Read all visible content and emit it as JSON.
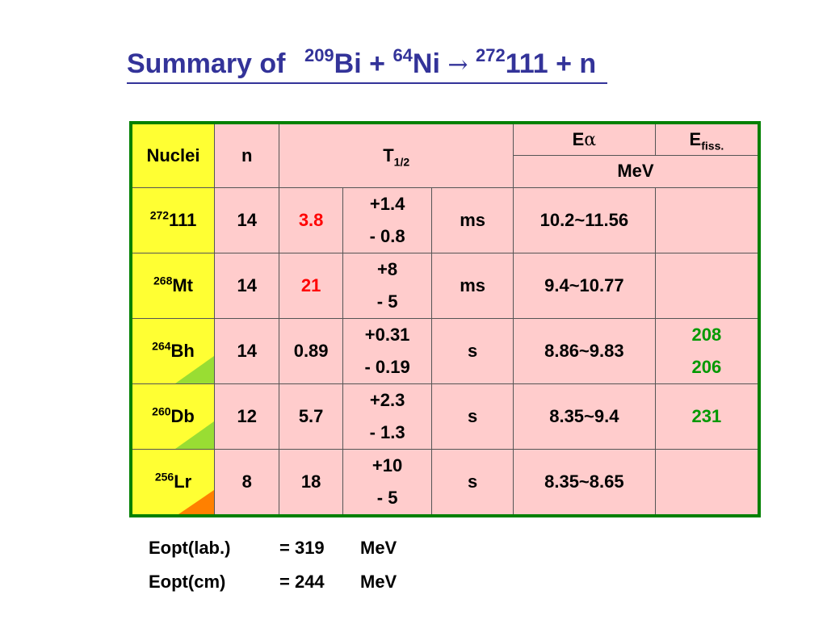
{
  "title": {
    "prefix": "Summary of",
    "bi_mass": "209",
    "bi": "Bi +",
    "ni_mass": "64",
    "ni": "Ni",
    "arrow": "→",
    "product_mass": "272",
    "product": "111 + n"
  },
  "table": {
    "headers": {
      "nuclei": "Nuclei",
      "n": "n",
      "t_half_main": "T",
      "t_half_sub": "1/2",
      "e_alpha_main": "E",
      "e_alpha_sub": "α",
      "e_fiss_main": "E",
      "e_fiss_sub": "fiss.",
      "unit": "MeV"
    },
    "rows": [
      {
        "mass": "272",
        "element": "111",
        "n": "14",
        "t": "3.8",
        "t_color": "#ff0000",
        "plus": "+1.4",
        "minus": "- 0.8",
        "unit": "ms",
        "ealpha": "10.2~11.56",
        "efiss1": "",
        "efiss2": "",
        "marker": ""
      },
      {
        "mass": "268",
        "element": "Mt",
        "n": "14",
        "t": "21",
        "t_color": "#ff0000",
        "plus": "+8",
        "minus": "- 5",
        "unit": "ms",
        "ealpha": "9.4~10.77",
        "efiss1": "",
        "efiss2": "",
        "marker": ""
      },
      {
        "mass": "264",
        "element": "Bh",
        "n": "14",
        "t": "0.89",
        "t_color": "#000000",
        "plus": "+0.31",
        "minus": "- 0.19",
        "unit": "s",
        "ealpha": "8.86~9.83",
        "efiss1": "208",
        "efiss2": "206",
        "marker": "green"
      },
      {
        "mass": "260",
        "element": "Db",
        "n": "12",
        "t": "5.7",
        "t_color": "#000000",
        "plus": "+2.3",
        "minus": "- 1.3",
        "unit": "s",
        "ealpha": "8.35~9.4",
        "efiss1": "231",
        "efiss2": "",
        "marker": "green"
      },
      {
        "mass": "256",
        "element": "Lr",
        "n": "8",
        "t": "18",
        "t_color": "#000000",
        "plus": "+10",
        "minus": "- 5",
        "unit": "s",
        "ealpha": "8.35~8.65",
        "efiss1": "",
        "efiss2": "",
        "marker": "orange"
      }
    ]
  },
  "eopt": [
    {
      "label": "Eopt(lab.)",
      "value": "= 319",
      "unit": "MeV"
    },
    {
      "label": "Eopt(cm)",
      "value": "= 244",
      "unit": "MeV"
    }
  ],
  "colors": {
    "title": "#333399",
    "table_border": "#008000",
    "cell_bg": "#ffcccc",
    "nuclei_bg": "#ffff33",
    "red_value": "#ff0000",
    "green_value": "#009900",
    "marker_green": "#99dd33",
    "marker_orange": "#ff8000"
  }
}
